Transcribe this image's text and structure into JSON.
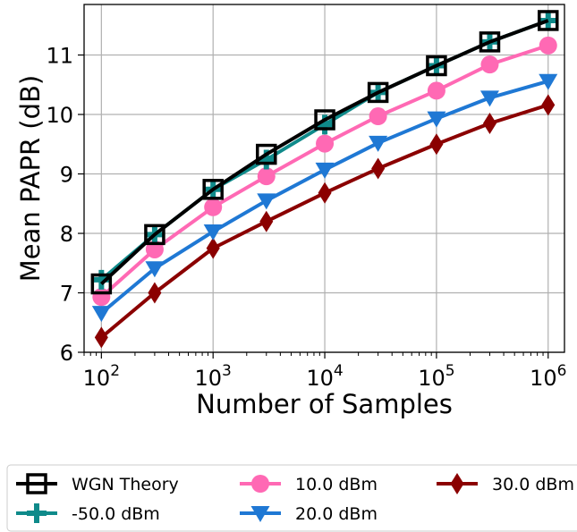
{
  "chart_data": {
    "type": "line",
    "title": "",
    "xlabel": "Number of Samples",
    "ylabel": "Mean PAPR (dB)",
    "xscale": "log",
    "x": [
      100,
      300,
      1000,
      3000,
      10000,
      30000,
      100000,
      300000,
      1000000
    ],
    "xlim": [
      70,
      1400000
    ],
    "ylim": [
      6,
      11.85
    ],
    "x_ticks": [
      {
        "value": 100,
        "base": "10",
        "exp": "2"
      },
      {
        "value": 1000,
        "base": "10",
        "exp": "3"
      },
      {
        "value": 10000,
        "base": "10",
        "exp": "4"
      },
      {
        "value": 100000,
        "base": "10",
        "exp": "5"
      },
      {
        "value": 1000000,
        "base": "10",
        "exp": "6"
      }
    ],
    "y_ticks": [
      {
        "value": 6,
        "label": "6"
      },
      {
        "value": 7,
        "label": "7"
      },
      {
        "value": 8,
        "label": "8"
      },
      {
        "value": 9,
        "label": "9"
      },
      {
        "value": 10,
        "label": "10"
      },
      {
        "value": 11,
        "label": "11"
      }
    ],
    "grid": true,
    "legend_position": "below",
    "series": [
      {
        "name": "WGN Theory",
        "color": "#000000",
        "marker": "square-open",
        "values": [
          7.15,
          7.98,
          8.74,
          9.33,
          9.91,
          10.37,
          10.82,
          11.22,
          11.58
        ]
      },
      {
        "name": "-50.0 dBm",
        "color": "#0f8a8a",
        "marker": "plus",
        "values": [
          7.22,
          7.98,
          8.74,
          9.24,
          9.83,
          10.37,
          10.82,
          11.22,
          11.58
        ]
      },
      {
        "name": "10.0 dBm",
        "color": "#ff69b4",
        "marker": "circle",
        "values": [
          6.93,
          7.73,
          8.44,
          8.96,
          9.51,
          9.97,
          10.4,
          10.84,
          11.16
        ]
      },
      {
        "name": "20.0 dBm",
        "color": "#1f78d4",
        "marker": "triangle-down",
        "values": [
          6.66,
          7.41,
          8.03,
          8.55,
          9.07,
          9.52,
          9.93,
          10.28,
          10.56
        ]
      },
      {
        "name": "30.0 dBm",
        "color": "#8b0000",
        "marker": "diamond",
        "values": [
          6.25,
          7.0,
          7.75,
          8.2,
          8.68,
          9.09,
          9.5,
          9.85,
          10.16
        ]
      }
    ]
  }
}
